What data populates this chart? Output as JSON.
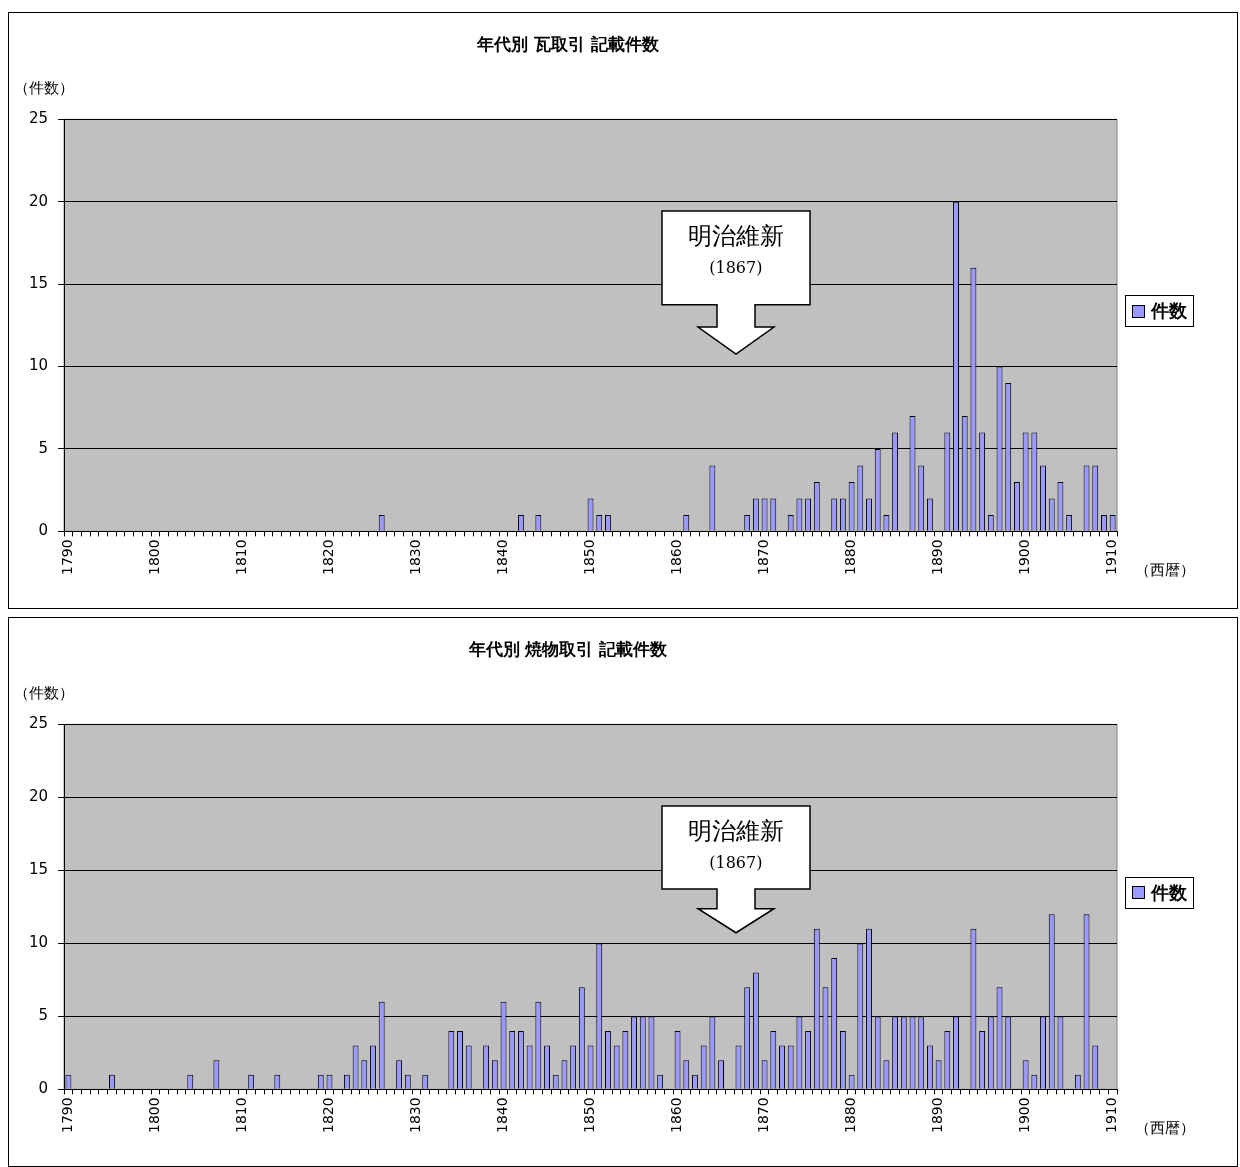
{
  "chart_data": [
    {
      "type": "bar",
      "title": "年代別 瓦取引 記載件数",
      "ylabel": "（件数）",
      "xlabel": "（西暦）",
      "categories": [
        "1790",
        null,
        null,
        null,
        null,
        null,
        null,
        null,
        null,
        null,
        "1800",
        null,
        null,
        null,
        null,
        null,
        null,
        null,
        null,
        null,
        "1810",
        null,
        null,
        null,
        null,
        null,
        null,
        null,
        null,
        null,
        "1820",
        null,
        null,
        null,
        null,
        null,
        null,
        null,
        null,
        null,
        "1830",
        null,
        null,
        null,
        null,
        null,
        null,
        null,
        null,
        null,
        "1840",
        null,
        null,
        null,
        null,
        null,
        null,
        null,
        null,
        null,
        "1850",
        null,
        null,
        null,
        null,
        null,
        null,
        null,
        null,
        null,
        "1860",
        null,
        null,
        null,
        null,
        null,
        null,
        null,
        null,
        null,
        "1870",
        null,
        null,
        null,
        null,
        null,
        null,
        null,
        null,
        null,
        "1880",
        null,
        null,
        null,
        null,
        null,
        null,
        null,
        null,
        null,
        "1890",
        null,
        null,
        null,
        null,
        null,
        null,
        null,
        null,
        null,
        "1900",
        null,
        null,
        null,
        null,
        null,
        null,
        null,
        null,
        null,
        "1910"
      ],
      "series": [
        {
          "name": "件数",
          "color": "#9999ff",
          "values": [
            0,
            0,
            0,
            0,
            0,
            0,
            0,
            0,
            0,
            0,
            0,
            0,
            0,
            0,
            0,
            0,
            0,
            0,
            0,
            0,
            0,
            0,
            0,
            0,
            0,
            0,
            0,
            0,
            0,
            0,
            0,
            0,
            0,
            0,
            0,
            0,
            1,
            0,
            0,
            0,
            0,
            0,
            0,
            0,
            0,
            0,
            0,
            0,
            0,
            0,
            0,
            0,
            1,
            0,
            1,
            0,
            0,
            0,
            0,
            0,
            2,
            1,
            1,
            0,
            0,
            0,
            0,
            0,
            0,
            0,
            0,
            1,
            0,
            0,
            4,
            0,
            0,
            0,
            1,
            2,
            2,
            2,
            0,
            1,
            2,
            2,
            3,
            0,
            2,
            2,
            3,
            4,
            2,
            5,
            1,
            6,
            0,
            7,
            4,
            2,
            0,
            6,
            20,
            7,
            16,
            6,
            1,
            10,
            9,
            3,
            6,
            6,
            4,
            2,
            3,
            1,
            0,
            4,
            4,
            1,
            1
          ]
        }
      ],
      "ylim": [
        0,
        25
      ],
      "yticks": [
        0,
        5,
        10,
        15,
        20,
        25
      ],
      "grid": "y",
      "legend": "right",
      "annotations": [
        "明治維新\n(1867)"
      ]
    },
    {
      "type": "bar",
      "title": "年代別 焼物取引 記載件数",
      "ylabel": "（件数）",
      "xlabel": "（西暦）",
      "categories": [
        "1790",
        null,
        null,
        null,
        null,
        null,
        null,
        null,
        null,
        null,
        "1800",
        null,
        null,
        null,
        null,
        null,
        null,
        null,
        null,
        null,
        "1810",
        null,
        null,
        null,
        null,
        null,
        null,
        null,
        null,
        null,
        "1820",
        null,
        null,
        null,
        null,
        null,
        null,
        null,
        null,
        null,
        "1830",
        null,
        null,
        null,
        null,
        null,
        null,
        null,
        null,
        null,
        "1840",
        null,
        null,
        null,
        null,
        null,
        null,
        null,
        null,
        null,
        "1850",
        null,
        null,
        null,
        null,
        null,
        null,
        null,
        null,
        null,
        "1860",
        null,
        null,
        null,
        null,
        null,
        null,
        null,
        null,
        null,
        "1870",
        null,
        null,
        null,
        null,
        null,
        null,
        null,
        null,
        null,
        "1880",
        null,
        null,
        null,
        null,
        null,
        null,
        null,
        null,
        null,
        "1890",
        null,
        null,
        null,
        null,
        null,
        null,
        null,
        null,
        null,
        "1900",
        null,
        null,
        null,
        null,
        null,
        null,
        null,
        null,
        null,
        "1910"
      ],
      "series": [
        {
          "name": "件数",
          "color": "#9999ff",
          "values": [
            1,
            0,
            0,
            0,
            0,
            1,
            0,
            0,
            0,
            0,
            0,
            0,
            0,
            0,
            1,
            0,
            0,
            2,
            0,
            0,
            0,
            1,
            0,
            0,
            1,
            0,
            0,
            0,
            0,
            1,
            1,
            0,
            1,
            3,
            2,
            3,
            6,
            0,
            2,
            1,
            0,
            1,
            0,
            0,
            4,
            4,
            3,
            0,
            3,
            2,
            6,
            4,
            4,
            3,
            6,
            3,
            1,
            2,
            3,
            7,
            3,
            10,
            4,
            3,
            4,
            5,
            5,
            5,
            1,
            0,
            4,
            2,
            1,
            3,
            5,
            2,
            0,
            3,
            7,
            8,
            2,
            4,
            3,
            3,
            5,
            4,
            11,
            7,
            9,
            4,
            1,
            10,
            11,
            5,
            2,
            5,
            5,
            5,
            5,
            3,
            2,
            4,
            5,
            0,
            11,
            4,
            5,
            7,
            5,
            0,
            2,
            1,
            5,
            12,
            5,
            0,
            1,
            12,
            3,
            0,
            0
          ]
        }
      ],
      "ylim": [
        0,
        25
      ],
      "yticks": [
        0,
        5,
        10,
        15,
        20,
        25
      ],
      "grid": "y",
      "legend": "right",
      "annotations": [
        "明治維新\n(1867)"
      ]
    }
  ]
}
